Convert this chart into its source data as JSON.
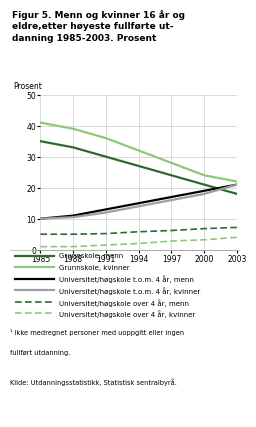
{
  "title_line1": "Figur 5. Menn og kvinner 16 år og",
  "title_line2": "eldre,etter høyeste fullførte ut-",
  "title_line3": "danning 1985-2003. Prosent",
  "ylabel": "Prosent",
  "years": [
    1985,
    1988,
    1991,
    1994,
    1997,
    2000,
    2003
  ],
  "grunnskole_menn": [
    35,
    33,
    30,
    27,
    24,
    21,
    18
  ],
  "grunnskole_kvinner": [
    41,
    39,
    36,
    32,
    28,
    24,
    22
  ],
  "univ4_menn": [
    10,
    11,
    13,
    15,
    17,
    19,
    21
  ],
  "univ4_kvinner": [
    10,
    10.5,
    12,
    14,
    16,
    18,
    21
  ],
  "univover4_menn": [
    5,
    5,
    5.2,
    5.8,
    6.2,
    6.8,
    7.2
  ],
  "univover4_kvinner": [
    1,
    1,
    1.5,
    2,
    2.8,
    3.2,
    4
  ],
  "color_dark_green": "#2d6a2d",
  "color_light_green": "#8dc87a",
  "color_black": "#000000",
  "color_gray": "#a0a0a0",
  "ylim": [
    0,
    50
  ],
  "yticks": [
    0,
    10,
    20,
    30,
    40,
    50
  ],
  "footnote1": "¹ Ikke medregnet personer med uoppgitt eller ingen",
  "footnote2": "fullført utdanning.",
  "source": "Kilde: Utdanningsstatistikk, Statistisk sentralbyrå.",
  "legend_items": [
    "Grunnskole, menn",
    "Grunnskole, kvinner",
    "Universitet/høgskole t.o.m. 4 år, menn",
    "Universitet/høgskole t.o.m. 4 år, kvinner",
    "Universitet/høgskole over 4 år, menn",
    "Universitet/høgskole over 4 år, kvinner"
  ]
}
